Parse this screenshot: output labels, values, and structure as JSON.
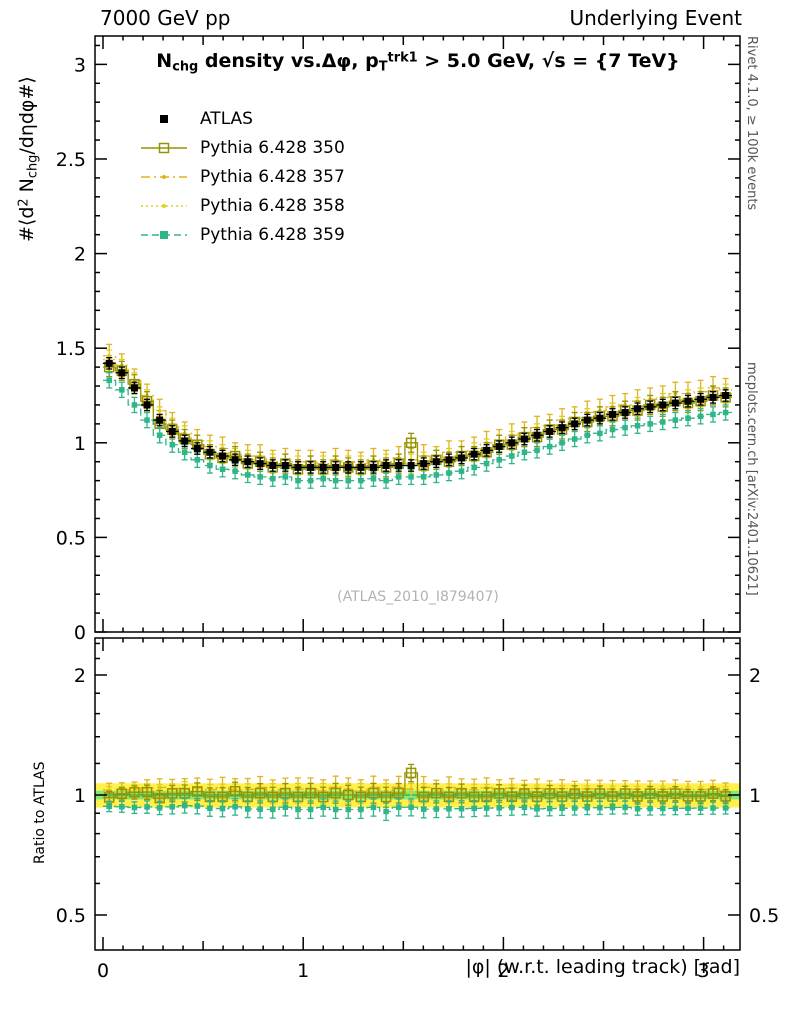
{
  "header": {
    "left": "7000 GeV pp",
    "right": "Underlying Event"
  },
  "title_parts": [
    {
      "t": "N",
      "s": "n"
    },
    {
      "t": "chg",
      "s": "sub"
    },
    {
      "t": " density vs.Δφ, p",
      "s": "n"
    },
    {
      "t": "T",
      "s": "sub"
    },
    {
      "t": "trk1",
      "s": "sup"
    },
    {
      "t": " > 5.0 GeV, √s = {7 TeV}",
      "s": "n"
    }
  ],
  "ylabel_parts": [
    {
      "t": "#⟨d",
      "s": "n"
    },
    {
      "t": "2",
      "s": "sup"
    },
    {
      "t": " N",
      "s": "n"
    },
    {
      "t": "chg",
      "s": "sub"
    },
    {
      "t": "/dηdφ#⟩",
      "s": "n"
    }
  ],
  "ratio_ylabel": "Ratio to ATLAS",
  "xlabel": "|φ| (w.r.t. leading track) [rad]",
  "watermark": "(ATLAS_2010_I879407)",
  "side_notes": {
    "right_top": "Rivet 4.1.0, ≥ 100k events",
    "right_bottom": "mcplots.cern.ch [arXiv:2401.10621]"
  },
  "chart_data": {
    "type": "scatter",
    "x_axis": {
      "xlim": [
        0,
        3.1416
      ],
      "xticks": [
        0,
        1,
        2,
        3
      ],
      "xtick_labels": [
        "0",
        "1",
        "2",
        "3"
      ]
    },
    "main_axis": {
      "ylim": [
        0,
        3.15
      ],
      "yticks": [
        0,
        0.5,
        1,
        1.5,
        2,
        2.5,
        3
      ],
      "ytick_labels": [
        "0",
        "0.5",
        "1",
        "1.5",
        "2",
        "2.5",
        "3"
      ]
    },
    "ratio_axis": {
      "scale": "log",
      "ylim": [
        0.41,
        2.48
      ],
      "yticks": [
        0.5,
        1,
        2
      ],
      "ytick_labels": [
        "0.5",
        "1",
        "2"
      ],
      "minor_ticks": [
        0.6,
        0.7,
        0.8,
        0.9,
        1.2,
        1.4,
        1.6,
        1.8,
        2.2,
        2.4
      ]
    },
    "ratio_band": {
      "outer": 0.07,
      "inner": 0.025,
      "outer_color": "#fff04d",
      "inner_color": "#7fe87f",
      "center_color": "#11a04a"
    },
    "x": [
      0.031,
      0.094,
      0.157,
      0.22,
      0.283,
      0.346,
      0.408,
      0.471,
      0.534,
      0.597,
      0.66,
      0.723,
      0.785,
      0.848,
      0.911,
      0.974,
      1.037,
      1.1,
      1.162,
      1.225,
      1.288,
      1.351,
      1.414,
      1.477,
      1.539,
      1.602,
      1.665,
      1.728,
      1.791,
      1.854,
      1.916,
      1.979,
      2.042,
      2.105,
      2.168,
      2.231,
      2.293,
      2.356,
      2.419,
      2.482,
      2.545,
      2.608,
      2.67,
      2.733,
      2.796,
      2.859,
      2.922,
      2.985,
      3.047,
      3.11
    ],
    "series": [
      {
        "name": "ATLAS",
        "color": "#000000",
        "marker": "sqf",
        "msize": 7,
        "line": "none",
        "err": 0.03,
        "xerr": true,
        "values": [
          1.42,
          1.37,
          1.29,
          1.2,
          1.12,
          1.06,
          1.01,
          0.97,
          0.95,
          0.93,
          0.91,
          0.9,
          0.89,
          0.88,
          0.88,
          0.87,
          0.87,
          0.87,
          0.87,
          0.87,
          0.87,
          0.87,
          0.88,
          0.88,
          0.88,
          0.89,
          0.9,
          0.91,
          0.92,
          0.94,
          0.96,
          0.98,
          1.0,
          1.02,
          1.04,
          1.06,
          1.08,
          1.1,
          1.12,
          1.13,
          1.15,
          1.16,
          1.18,
          1.19,
          1.2,
          1.21,
          1.22,
          1.23,
          1.24,
          1.25
        ]
      },
      {
        "name": "Pythia 6.428 350",
        "color": "#969300",
        "marker": "sqo",
        "msize": 9,
        "line": "solid",
        "err": 0.05,
        "xerr": false,
        "values": [
          1.4,
          1.38,
          1.31,
          1.22,
          1.1,
          1.07,
          1.02,
          0.99,
          0.94,
          0.92,
          0.93,
          0.89,
          0.9,
          0.87,
          0.89,
          0.86,
          0.88,
          0.86,
          0.88,
          0.87,
          0.86,
          0.88,
          0.87,
          0.89,
          1.0,
          0.88,
          0.91,
          0.9,
          0.93,
          0.93,
          0.95,
          0.99,
          0.99,
          1.03,
          1.03,
          1.07,
          1.07,
          1.11,
          1.11,
          1.14,
          1.14,
          1.17,
          1.17,
          1.2,
          1.19,
          1.22,
          1.21,
          1.22,
          1.25,
          1.24
        ]
      },
      {
        "name": "Pythia 6.428 357",
        "color": "#e1b31e",
        "marker": "dot",
        "msize": 1.8,
        "line": "dashdot",
        "err": 0.06,
        "xerr": false,
        "values": [
          1.46,
          1.41,
          1.33,
          1.25,
          1.17,
          1.1,
          1.05,
          1.01,
          0.98,
          0.97,
          0.94,
          0.93,
          0.93,
          0.9,
          0.91,
          0.9,
          0.9,
          0.89,
          0.91,
          0.9,
          0.89,
          0.91,
          0.9,
          0.92,
          0.91,
          0.93,
          0.92,
          0.95,
          0.95,
          0.97,
          1.0,
          1.01,
          1.04,
          1.05,
          1.08,
          1.09,
          1.12,
          1.13,
          1.16,
          1.17,
          1.19,
          1.2,
          1.22,
          1.23,
          1.24,
          1.26,
          1.26,
          1.27,
          1.29,
          1.28
        ]
      },
      {
        "name": "Pythia 6.428 358",
        "color": "#ddd021",
        "marker": "dot",
        "msize": 1.5,
        "line": "dotted",
        "err": 0.05,
        "xerr": false,
        "values": [
          1.44,
          1.39,
          1.32,
          1.23,
          1.14,
          1.08,
          1.04,
          0.99,
          0.96,
          0.94,
          0.92,
          0.91,
          0.9,
          0.89,
          0.89,
          0.88,
          0.88,
          0.88,
          0.88,
          0.88,
          0.88,
          0.88,
          0.89,
          0.89,
          0.89,
          0.9,
          0.91,
          0.92,
          0.93,
          0.95,
          0.97,
          0.99,
          1.01,
          1.03,
          1.05,
          1.07,
          1.09,
          1.11,
          1.13,
          1.14,
          1.16,
          1.17,
          1.19,
          1.2,
          1.21,
          1.22,
          1.23,
          1.24,
          1.25,
          1.26
        ]
      },
      {
        "name": "Pythia 6.428 359",
        "color": "#2eb58a",
        "marker": "sqf",
        "msize": 5.5,
        "line": "dashed",
        "err": 0.04,
        "xerr": false,
        "values": [
          1.33,
          1.28,
          1.2,
          1.12,
          1.04,
          0.99,
          0.95,
          0.91,
          0.88,
          0.86,
          0.85,
          0.83,
          0.82,
          0.81,
          0.82,
          0.8,
          0.8,
          0.81,
          0.8,
          0.8,
          0.8,
          0.81,
          0.8,
          0.82,
          0.82,
          0.82,
          0.83,
          0.84,
          0.85,
          0.87,
          0.89,
          0.91,
          0.93,
          0.95,
          0.96,
          0.98,
          1.0,
          1.02,
          1.04,
          1.05,
          1.07,
          1.08,
          1.09,
          1.1,
          1.11,
          1.12,
          1.13,
          1.14,
          1.15,
          1.16
        ]
      }
    ]
  }
}
